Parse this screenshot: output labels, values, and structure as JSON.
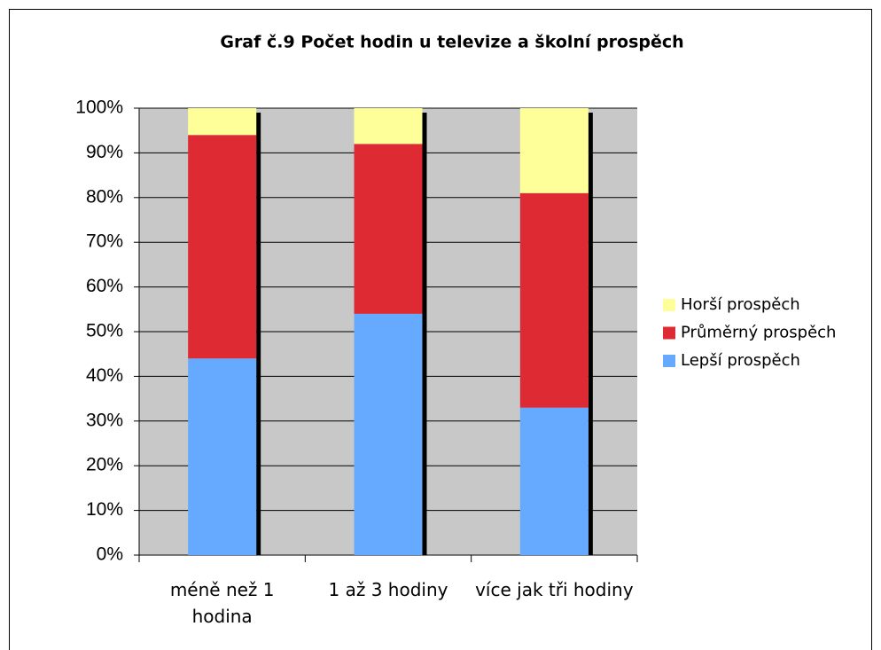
{
  "chart_data": {
    "type": "stacked_bar_100",
    "title": "Graf č.9 Počet hodin u televize a školní prospěch",
    "categories": [
      "méně než 1 hodina",
      "1 až 3 hodiny",
      "více jak tři hodiny"
    ],
    "series": [
      {
        "name": "Lepší prospěch",
        "color": "#66aaff",
        "values": [
          44,
          54,
          33
        ]
      },
      {
        "name": "Průměrný prospěch",
        "color": "#dd2a33",
        "values": [
          50,
          38,
          48
        ]
      },
      {
        "name": "Horší prospěch",
        "color": "#ffff99",
        "values": [
          6,
          8,
          19
        ]
      }
    ],
    "ylim": [
      0,
      100
    ],
    "yticks": [
      {
        "value": 0,
        "label": "0%"
      },
      {
        "value": 10,
        "label": "10%"
      },
      {
        "value": 20,
        "label": "20%"
      },
      {
        "value": 30,
        "label": "30%"
      },
      {
        "value": 40,
        "label": "40%"
      },
      {
        "value": 50,
        "label": "50%"
      },
      {
        "value": 60,
        "label": "60%"
      },
      {
        "value": 70,
        "label": "70%"
      },
      {
        "value": 80,
        "label": "80%"
      },
      {
        "value": 90,
        "label": "90%"
      },
      {
        "value": 100,
        "label": "100%"
      }
    ],
    "grid": true,
    "legend": "right"
  }
}
